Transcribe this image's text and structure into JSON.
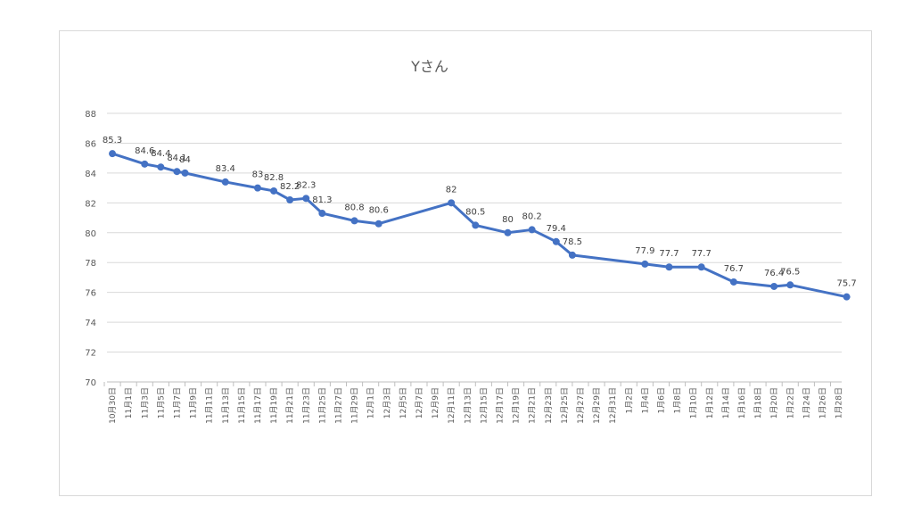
{
  "chart_data": {
    "type": "line",
    "title": "Yさん",
    "xlabel": "",
    "ylabel": "",
    "ylim": [
      70,
      88
    ],
    "y_ticks": [
      70,
      72,
      74,
      76,
      78,
      80,
      82,
      84,
      86,
      88
    ],
    "grid": true,
    "legend": "none",
    "x_ticks": [
      "10月30日",
      "11月1日",
      "11月3日",
      "11月5日",
      "11月7日",
      "11月9日",
      "11月11日",
      "11月13日",
      "11月15日",
      "11月17日",
      "11月19日",
      "11月21日",
      "11月23日",
      "11月25日",
      "11月27日",
      "11月29日",
      "12月1日",
      "12月3日",
      "12月5日",
      "12月7日",
      "12月9日",
      "12月11日",
      "12月13日",
      "12月15日",
      "12月17日",
      "12月19日",
      "12月21日",
      "12月23日",
      "12月25日",
      "12月27日",
      "12月29日",
      "12月31日",
      "1月2日",
      "1月4日",
      "1月6日",
      "1月8日",
      "1月10日",
      "1月12日",
      "1月14日",
      "1月16日",
      "1月18日",
      "1月20日",
      "1月22日",
      "1月24日",
      "1月26日",
      "1月28日"
    ],
    "colors": {
      "series": "#4472c4",
      "grid": "#d9d9d9",
      "text": "#595959"
    },
    "series": [
      {
        "x": [
          "10月30日",
          "11月3日",
          "11月5日",
          "11月7日",
          "11月8日",
          "11月13日",
          "11月17日",
          "11月19日",
          "11月21日",
          "11月23日",
          "11月25日",
          "11月29日",
          "12月2日",
          "12月11日",
          "12月14日",
          "12月18日",
          "12月21日",
          "12月24日",
          "12月26日",
          "1月4日",
          "1月7日",
          "1月11日",
          "1月15日",
          "1月20日",
          "1月22日",
          "1月29日"
        ],
        "values": [
          85.3,
          84.6,
          84.4,
          84.1,
          84,
          83.4,
          83,
          82.8,
          82.2,
          82.3,
          81.3,
          80.8,
          80.6,
          82,
          80.5,
          80,
          80.2,
          79.4,
          78.5,
          77.9,
          77.7,
          77.7,
          76.7,
          76.4,
          76.5,
          75.7
        ],
        "labels": [
          "85.3",
          "84.6",
          "84.4",
          "84.1",
          "84",
          "83.4",
          "83",
          "82.8",
          "82.2",
          "82.3",
          "81.3",
          "80.8",
          "80.6",
          "82",
          "80.5",
          "80",
          "80.2",
          "79.4",
          "78.5",
          "77.9",
          "77.7",
          "77.7",
          "76.7",
          "76.4",
          "76.5",
          "75.7"
        ]
      }
    ]
  }
}
